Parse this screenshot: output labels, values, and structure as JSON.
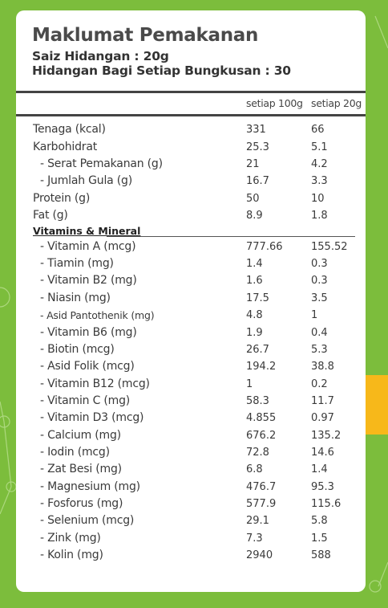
{
  "title": "Maklumat Pemakanan",
  "serving_size": "Saiz Hidangan : 20g",
  "servings_per_pack": "Hidangan Bagi Setiap Bungkusan : 30",
  "columns": [
    "setiap 100g",
    "setiap 20g"
  ],
  "section_vitamins": "Vitamins & Mineral",
  "main_rows": [
    {
      "label": "Tenaga (kcal)",
      "v100": "331",
      "v20": "66"
    },
    {
      "label": "Karbohidrat",
      "v100": "25.3",
      "v20": "5.1"
    },
    {
      "label": "- Serat Pemakanan (g)",
      "v100": "21",
      "v20": "4.2"
    },
    {
      "label": "- Jumlah Gula (g)",
      "v100": "16.7",
      "v20": "3.3"
    },
    {
      "label": "Protein (g)",
      "v100": "50",
      "v20": "10"
    },
    {
      "label": "Fat (g)",
      "v100": "8.9",
      "v20": "1.8"
    }
  ],
  "vitamin_rows": [
    {
      "label": "- Vitamin A (mcg)",
      "v100": "777.66",
      "v20": "155.52"
    },
    {
      "label": "- Tiamin (mg)",
      "v100": "1.4",
      "v20": "0.3"
    },
    {
      "label": "- Vitamin B2 (mg)",
      "v100": "1.6",
      "v20": "0.3"
    },
    {
      "label": "- Niasin (mg)",
      "v100": "17.5",
      "v20": "3.5"
    },
    {
      "label": "- Asid Pantothenik (mg)",
      "v100": "4.8",
      "v20": "1"
    },
    {
      "label": "- Vitamin B6 (mg)",
      "v100": "1.9",
      "v20": "0.4"
    },
    {
      "label": "- Biotin (mcg)",
      "v100": "26.7",
      "v20": "5.3"
    },
    {
      "label": "- Asid Folik (mcg)",
      "v100": "194.2",
      "v20": "38.8"
    },
    {
      "label": "- Vitamin B12 (mcg)",
      "v100": "1",
      "v20": "0.2"
    },
    {
      "label": "- Vitamin C (mg)",
      "v100": "58.3",
      "v20": "11.7"
    },
    {
      "label": "- Vitamin D3 (mcg)",
      "v100": "4.855",
      "v20": "0.97"
    },
    {
      "label": "- Calcium (mg)",
      "v100": "676.2",
      "v20": "135.2"
    },
    {
      "label": "- Iodin (mcg)",
      "v100": "72.8",
      "v20": "14.6"
    },
    {
      "label": "- Zat Besi (mg)",
      "v100": "6.8",
      "v20": "1.4"
    },
    {
      "label": "- Magnesium (mg)",
      "v100": "476.7",
      "v20": "95.3"
    },
    {
      "label": "- Fosforus (mg)",
      "v100": "577.9",
      "v20": "115.6"
    },
    {
      "label": "- Selenium (mcg)",
      "v100": "29.1",
      "v20": "5.8"
    },
    {
      "label": "- Zink (mg)",
      "v100": "7.3",
      "v20": "1.5"
    },
    {
      "label": "- Kolin (mg)",
      "v100": "2940",
      "v20": "588"
    }
  ],
  "colors": {
    "background": "#7cbd3c",
    "accent_tab": "#f7b81a",
    "card": "#ffffff"
  }
}
